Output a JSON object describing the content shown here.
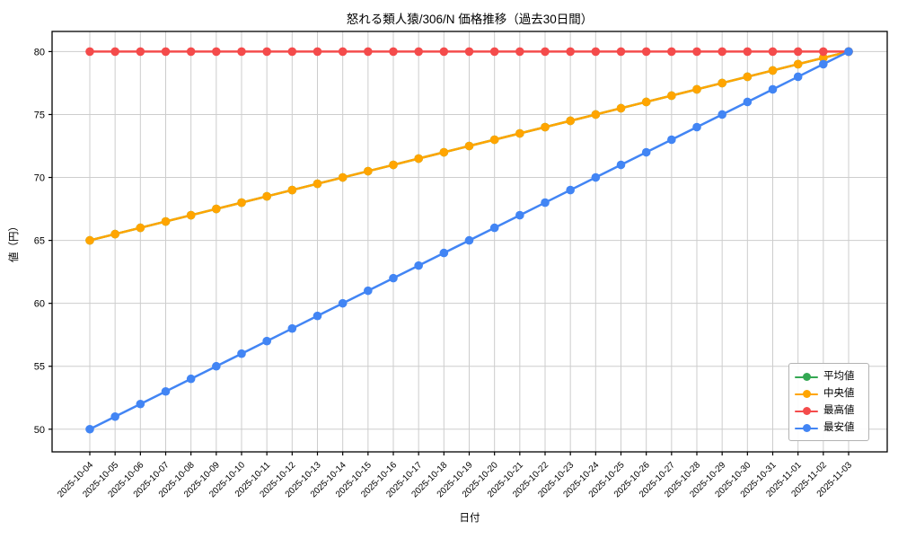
{
  "chart_data": {
    "type": "line",
    "title": "怒れる類人猿/306/N 価格推移（過去30日間）",
    "xlabel": "日付",
    "ylabel": "値（円）",
    "categories": [
      "2025-10-04",
      "2025-10-05",
      "2025-10-06",
      "2025-10-07",
      "2025-10-08",
      "2025-10-09",
      "2025-10-10",
      "2025-10-11",
      "2025-10-12",
      "2025-10-13",
      "2025-10-14",
      "2025-10-15",
      "2025-10-16",
      "2025-10-17",
      "2025-10-18",
      "2025-10-19",
      "2025-10-20",
      "2025-10-21",
      "2025-10-22",
      "2025-10-23",
      "2025-10-24",
      "2025-10-25",
      "2025-10-26",
      "2025-10-27",
      "2025-10-28",
      "2025-10-29",
      "2025-10-30",
      "2025-10-31",
      "2025-11-01",
      "2025-11-02",
      "2025-11-03"
    ],
    "series": [
      {
        "name": "平均値",
        "color": "#34a853",
        "values": [
          65,
          65.5,
          66,
          66.5,
          67,
          67.5,
          68,
          68.5,
          69,
          69.5,
          70,
          70.5,
          71,
          71.5,
          72,
          72.5,
          73,
          73.5,
          74,
          74.5,
          75,
          75.5,
          76,
          76.5,
          77,
          77.5,
          78,
          78.5,
          79,
          79.5,
          80
        ]
      },
      {
        "name": "中央値",
        "color": "#ffa500",
        "values": [
          65,
          65.5,
          66,
          66.5,
          67,
          67.5,
          68,
          68.5,
          69,
          69.5,
          70,
          70.5,
          71,
          71.5,
          72,
          72.5,
          73,
          73.5,
          74,
          74.5,
          75,
          75.5,
          76,
          76.5,
          77,
          77.5,
          78,
          78.5,
          79,
          79.5,
          80
        ]
      },
      {
        "name": "最高値",
        "color": "#f44b4b",
        "values": [
          80,
          80,
          80,
          80,
          80,
          80,
          80,
          80,
          80,
          80,
          80,
          80,
          80,
          80,
          80,
          80,
          80,
          80,
          80,
          80,
          80,
          80,
          80,
          80,
          80,
          80,
          80,
          80,
          80,
          80,
          80
        ]
      },
      {
        "name": "最安値",
        "color": "#4285f4",
        "values": [
          50,
          51,
          52,
          53,
          54,
          55,
          56,
          57,
          58,
          59,
          60,
          61,
          62,
          63,
          64,
          65,
          66,
          67,
          68,
          69,
          70,
          71,
          72,
          73,
          74,
          75,
          76,
          77,
          78,
          79,
          80
        ]
      }
    ],
    "yticks": [
      50,
      55,
      60,
      65,
      70,
      75,
      80
    ],
    "ylim": [
      48.2,
      81.6
    ],
    "grid": true,
    "legend_position": "lower right"
  }
}
